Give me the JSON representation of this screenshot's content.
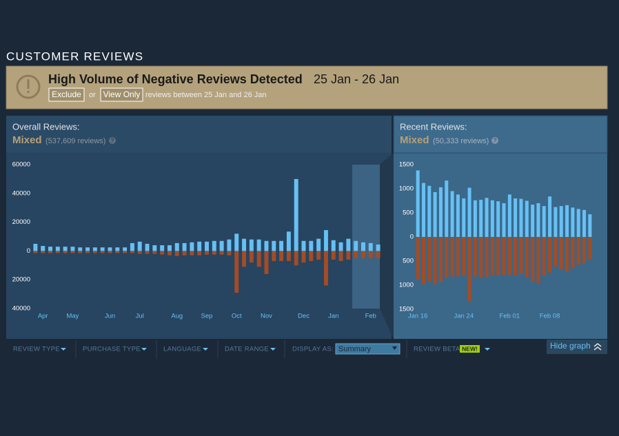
{
  "section_title": "CUSTOMER REVIEWS",
  "alert": {
    "title": "High Volume of Negative Reviews Detected",
    "dates": "25 Jan - 26 Jan",
    "exclude_button": "Exclude",
    "or": "or",
    "view_only_button": "View Only",
    "note": "reviews between 25 Jan and 26 Jan"
  },
  "overall": {
    "label": "Overall Reviews:",
    "rating": "Mixed",
    "count": "(537,609 reviews)",
    "help": "?"
  },
  "recent": {
    "label": "Recent Reviews:",
    "rating": "Mixed",
    "count": "(50,333 reviews)",
    "help": "?"
  },
  "chart_data": [
    {
      "type": "bar",
      "categories": [
        null,
        "Apr",
        null,
        null,
        null,
        "May",
        null,
        null,
        null,
        null,
        "Jun",
        null,
        null,
        null,
        "Jul",
        null,
        null,
        null,
        null,
        "Aug",
        null,
        null,
        null,
        "Sep",
        null,
        null,
        null,
        "Oct",
        null,
        null,
        null,
        "Nov",
        null,
        null,
        null,
        null,
        "Dec",
        null,
        null,
        null,
        "Jan",
        null,
        null,
        null,
        null,
        "Feb",
        null
      ],
      "series": [
        {
          "color": "#66c0f4",
          "values": [
            5000,
            3500,
            3000,
            3000,
            3000,
            3000,
            2500,
            2500,
            2500,
            2500,
            2500,
            2500,
            2500,
            5500,
            6500,
            5000,
            4000,
            4000,
            4000,
            5500,
            5500,
            6000,
            6500,
            6500,
            7000,
            7000,
            8000,
            12000,
            8500,
            8000,
            8000,
            7000,
            7000,
            7000,
            13500,
            50000,
            7000,
            7000,
            8500,
            14500,
            7500,
            6000,
            8500,
            7000,
            6000,
            5500,
            4500
          ]
        },
        {
          "color": "#a34c25",
          "values": [
            -1500,
            -1500,
            -1500,
            -1500,
            -1500,
            -1500,
            -1500,
            -1500,
            -1500,
            -1500,
            -1500,
            -1500,
            -1500,
            -1500,
            -2000,
            -2000,
            -2000,
            -2500,
            -3000,
            -3500,
            -3000,
            -3000,
            -3000,
            -2500,
            -2500,
            -2500,
            -3000,
            -29000,
            -11000,
            -8000,
            -11000,
            -16000,
            -7000,
            -7000,
            -7000,
            -10000,
            -8000,
            -7000,
            -6000,
            -24000,
            -6000,
            -7000,
            -6000,
            -5000,
            -5000,
            -5000,
            -5000
          ]
        }
      ],
      "ylim": [
        -40000,
        60000
      ],
      "yticks": [
        {
          "value": -40000,
          "label": "40000"
        },
        {
          "value": -20000,
          "label": "20000"
        },
        0,
        20000,
        40000,
        60000
      ]
    },
    {
      "type": "bar",
      "categories": [
        "Jan 16",
        null,
        null,
        null,
        null,
        null,
        null,
        null,
        "Jan 24",
        null,
        null,
        null,
        null,
        null,
        null,
        null,
        "Feb 01",
        null,
        null,
        null,
        null,
        null,
        null,
        "Feb 08",
        null,
        null,
        null,
        null,
        null,
        null,
        null
      ],
      "series": [
        {
          "color": "#66c0f4",
          "values": [
            1380,
            1120,
            1060,
            930,
            1030,
            1170,
            950,
            880,
            800,
            1020,
            760,
            770,
            810,
            760,
            740,
            700,
            880,
            800,
            790,
            750,
            670,
            700,
            640,
            840,
            620,
            640,
            660,
            610,
            580,
            560,
            470
          ]
        },
        {
          "color": "#a34c25",
          "values": [
            -880,
            -980,
            -920,
            -980,
            -930,
            -850,
            -820,
            -820,
            -800,
            -1330,
            -820,
            -850,
            -840,
            -800,
            -800,
            -790,
            -780,
            -800,
            -760,
            -840,
            -920,
            -960,
            -800,
            -740,
            -620,
            -680,
            -720,
            -650,
            -580,
            -550,
            -470
          ]
        }
      ],
      "ylim": [
        -1500,
        1500
      ],
      "yticks": [
        {
          "value": -1500,
          "label": "1500"
        },
        {
          "value": -1000,
          "label": "1000"
        },
        {
          "value": -500,
          "label": "500"
        },
        0,
        500,
        1000,
        1500
      ]
    }
  ],
  "filters": {
    "review_type": "REVIEW TYPE",
    "purchase_type": "PURCHASE TYPE",
    "language": "LANGUAGE",
    "date_range": "DATE RANGE",
    "display_as": "DISPLAY AS:",
    "display_value": "Summary",
    "review_beta": "REVIEW BETA",
    "new_badge": "NEW!",
    "hide_graph": "Hide graph"
  }
}
